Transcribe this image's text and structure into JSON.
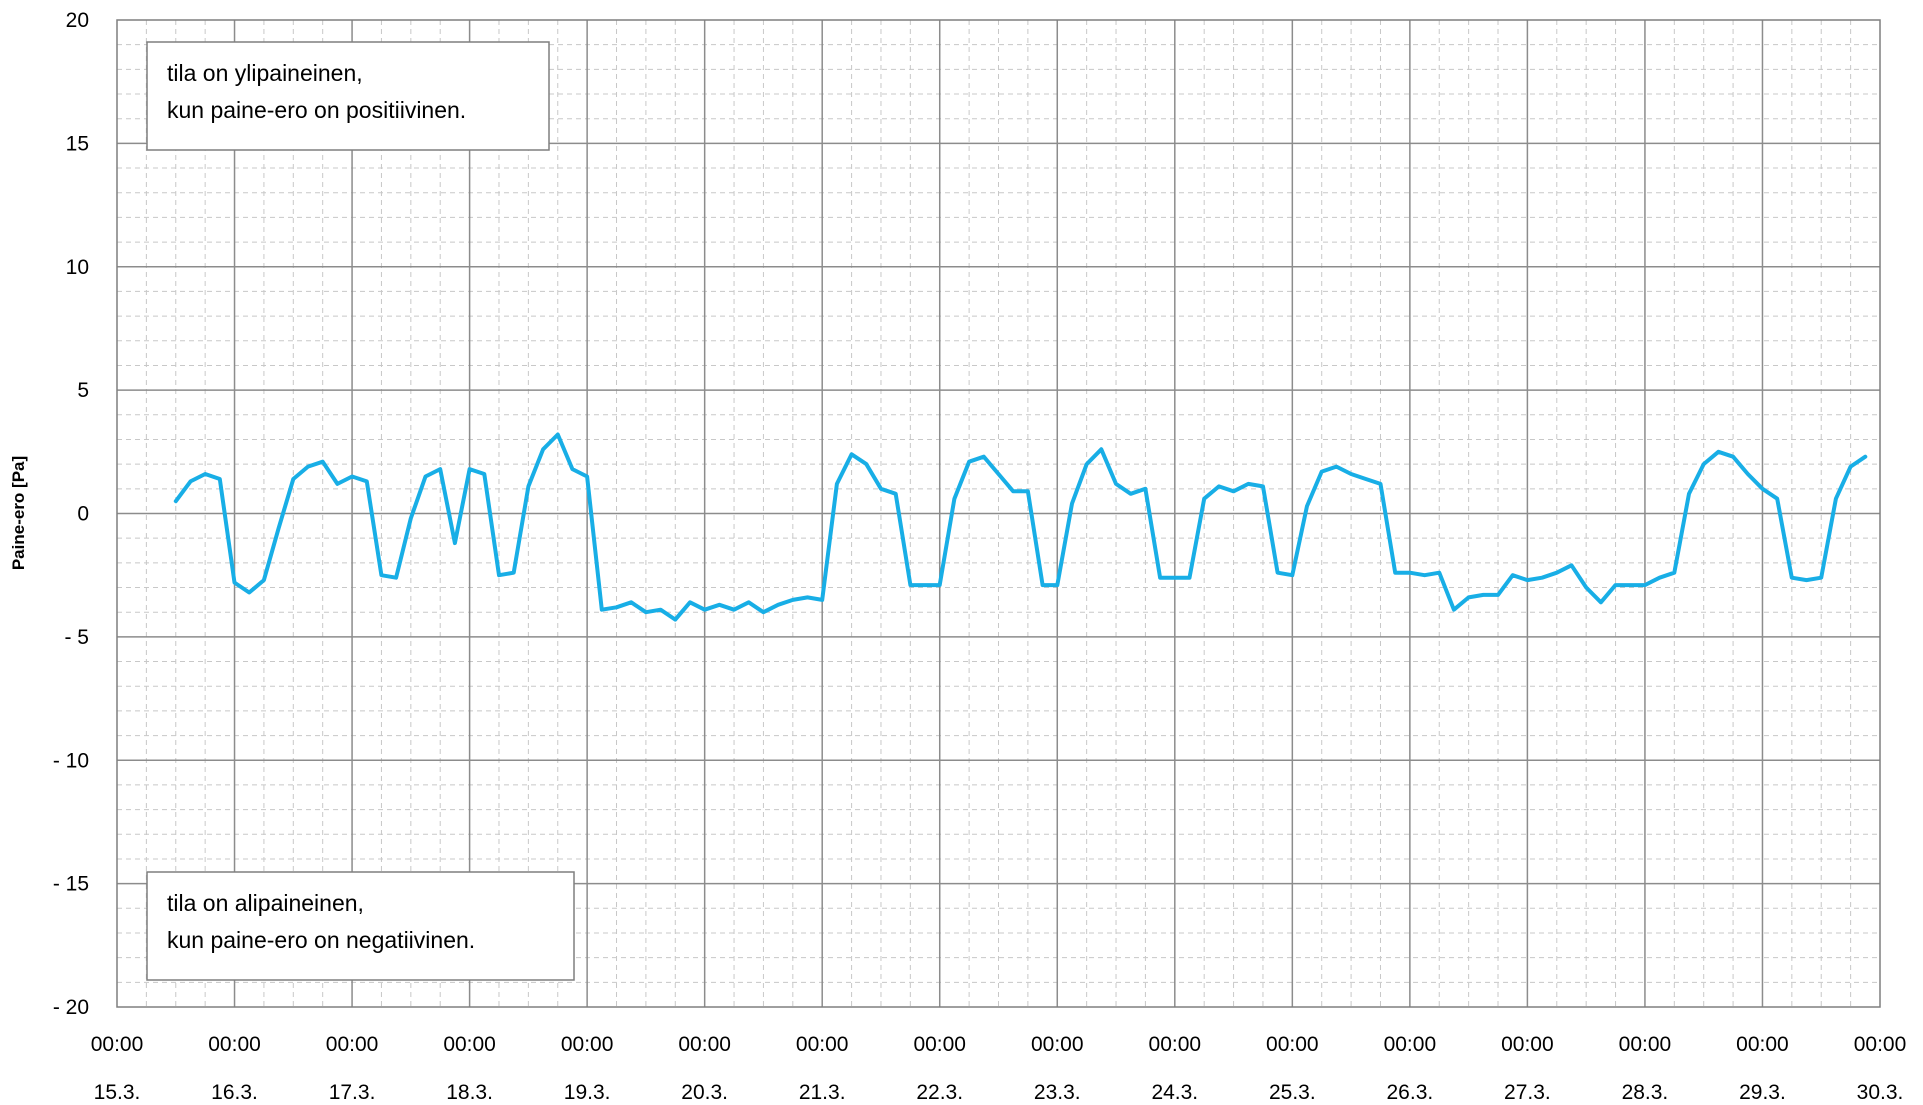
{
  "chart_data": {
    "type": "line",
    "title": "",
    "xlabel": "",
    "ylabel": "Paine-ero [Pa]",
    "ylim": [
      -20,
      20
    ],
    "yticks": [
      20,
      15,
      10,
      5,
      0,
      -5,
      -10,
      -15,
      -20
    ],
    "ytick_labels": [
      "20",
      "15",
      "10",
      "5",
      "0",
      "- 5",
      "- 10",
      "- 15",
      "- 20"
    ],
    "xlim": [
      "2024-03-15T00:00",
      "2024-03-30T00:00"
    ],
    "xtick_time_labels": [
      "00:00",
      "00:00",
      "00:00",
      "00:00",
      "00:00",
      "00:00",
      "00:00",
      "00:00",
      "00:00",
      "00:00",
      "00:00",
      "00:00",
      "00:00",
      "00:00",
      "00:00",
      "00:00"
    ],
    "xtick_date_labels": [
      "15.3.",
      "16.3.",
      "17.3.",
      "18.3.",
      "19.3.",
      "20.3.",
      "21.3.",
      "22.3.",
      "23.3.",
      "24.3.",
      "25.3.",
      "26.3.",
      "27.3.",
      "28.3.",
      "29.3.",
      "30.3."
    ],
    "grid": true,
    "line_color": "#18AEE6",
    "annotations": [
      {
        "lines": [
          "tila on ylipaineinen,",
          "kun paine-ero on positiivinen."
        ]
      },
      {
        "lines": [
          "tila on alipaineinen,",
          "kun paine-ero on negatiivinen."
        ]
      }
    ],
    "series": [
      {
        "x": [
          "2024-03-15T12:00",
          "2024-03-15T15:00",
          "2024-03-15T18:00",
          "2024-03-15T21:00",
          "2024-03-16T00:00",
          "2024-03-16T03:00",
          "2024-03-16T06:00",
          "2024-03-16T09:00",
          "2024-03-16T12:00",
          "2024-03-16T15:00",
          "2024-03-16T18:00",
          "2024-03-16T21:00",
          "2024-03-17T00:00",
          "2024-03-17T03:00",
          "2024-03-17T06:00",
          "2024-03-17T09:00",
          "2024-03-17T12:00",
          "2024-03-17T15:00",
          "2024-03-17T18:00",
          "2024-03-17T21:00",
          "2024-03-18T00:00",
          "2024-03-18T03:00",
          "2024-03-18T06:00",
          "2024-03-18T09:00",
          "2024-03-18T12:00",
          "2024-03-18T15:00",
          "2024-03-18T18:00",
          "2024-03-18T21:00",
          "2024-03-19T00:00",
          "2024-03-19T03:00",
          "2024-03-19T06:00",
          "2024-03-19T09:00",
          "2024-03-19T12:00",
          "2024-03-19T15:00",
          "2024-03-19T18:00",
          "2024-03-19T21:00",
          "2024-03-20T00:00",
          "2024-03-20T03:00",
          "2024-03-20T06:00",
          "2024-03-20T09:00",
          "2024-03-20T12:00",
          "2024-03-20T15:00",
          "2024-03-20T18:00",
          "2024-03-20T21:00",
          "2024-03-21T00:00",
          "2024-03-21T03:00",
          "2024-03-21T06:00",
          "2024-03-21T09:00",
          "2024-03-21T12:00",
          "2024-03-21T15:00",
          "2024-03-21T18:00",
          "2024-03-21T21:00",
          "2024-03-22T00:00",
          "2024-03-22T03:00",
          "2024-03-22T06:00",
          "2024-03-22T09:00",
          "2024-03-22T12:00",
          "2024-03-22T15:00",
          "2024-03-22T18:00",
          "2024-03-22T21:00",
          "2024-03-23T00:00",
          "2024-03-23T03:00",
          "2024-03-23T06:00",
          "2024-03-23T09:00",
          "2024-03-23T12:00",
          "2024-03-23T15:00",
          "2024-03-23T18:00",
          "2024-03-23T21:00",
          "2024-03-24T00:00",
          "2024-03-24T03:00",
          "2024-03-24T06:00",
          "2024-03-24T09:00",
          "2024-03-24T12:00",
          "2024-03-24T15:00",
          "2024-03-24T18:00",
          "2024-03-24T21:00",
          "2024-03-25T00:00",
          "2024-03-25T03:00",
          "2024-03-25T06:00",
          "2024-03-25T09:00",
          "2024-03-25T12:00",
          "2024-03-25T15:00",
          "2024-03-25T18:00",
          "2024-03-25T21:00",
          "2024-03-26T00:00",
          "2024-03-26T03:00",
          "2024-03-26T06:00",
          "2024-03-26T09:00",
          "2024-03-26T12:00",
          "2024-03-26T15:00",
          "2024-03-26T18:00",
          "2024-03-26T21:00",
          "2024-03-27T00:00",
          "2024-03-27T03:00",
          "2024-03-27T06:00",
          "2024-03-27T09:00",
          "2024-03-27T12:00",
          "2024-03-27T15:00",
          "2024-03-27T18:00",
          "2024-03-27T21:00",
          "2024-03-28T00:00",
          "2024-03-28T03:00",
          "2024-03-28T06:00",
          "2024-03-28T09:00",
          "2024-03-28T12:00",
          "2024-03-28T15:00",
          "2024-03-28T18:00",
          "2024-03-28T21:00",
          "2024-03-29T00:00",
          "2024-03-29T03:00",
          "2024-03-29T06:00",
          "2024-03-29T09:00",
          "2024-03-29T12:00",
          "2024-03-29T15:00",
          "2024-03-29T18:00",
          "2024-03-29T21:00"
        ],
        "values": [
          0.5,
          1.3,
          1.6,
          1.4,
          -2.8,
          -3.2,
          -2.7,
          -0.6,
          1.4,
          1.9,
          2.1,
          1.2,
          1.5,
          1.3,
          -2.5,
          -2.6,
          -0.2,
          1.5,
          1.8,
          -1.2,
          1.8,
          1.6,
          -2.5,
          -2.4,
          1.1,
          2.6,
          3.2,
          1.8,
          1.5,
          -3.9,
          -3.8,
          -3.6,
          -4.0,
          -3.9,
          -4.3,
          -3.6,
          -3.9,
          -3.7,
          -3.9,
          -3.6,
          -4.0,
          -3.7,
          -3.5,
          -3.4,
          -3.5,
          1.2,
          2.4,
          2.0,
          1.0,
          0.8,
          -2.9,
          -2.9,
          -2.9,
          0.6,
          2.1,
          2.3,
          1.6,
          0.9,
          0.9,
          -2.9,
          -2.9,
          0.4,
          2.0,
          2.6,
          1.2,
          0.8,
          1.0,
          -2.6,
          -2.6,
          -2.6,
          0.6,
          1.1,
          0.9,
          1.2,
          1.1,
          -2.4,
          -2.5,
          0.3,
          1.7,
          1.9,
          1.6,
          1.4,
          1.2,
          -2.4,
          -2.4,
          -2.5,
          -2.4,
          -3.9,
          -3.4,
          -3.3,
          -3.3,
          -2.5,
          -2.7,
          -2.6,
          -2.4,
          -2.1,
          -3.0,
          -3.6,
          -2.9,
          -2.9,
          -2.9,
          -2.6,
          -2.4,
          0.8,
          2.0,
          2.5,
          2.3,
          1.6,
          1.0,
          0.6,
          -2.6,
          -2.7,
          -2.6,
          0.6,
          1.9,
          2.3
        ]
      }
    ]
  }
}
